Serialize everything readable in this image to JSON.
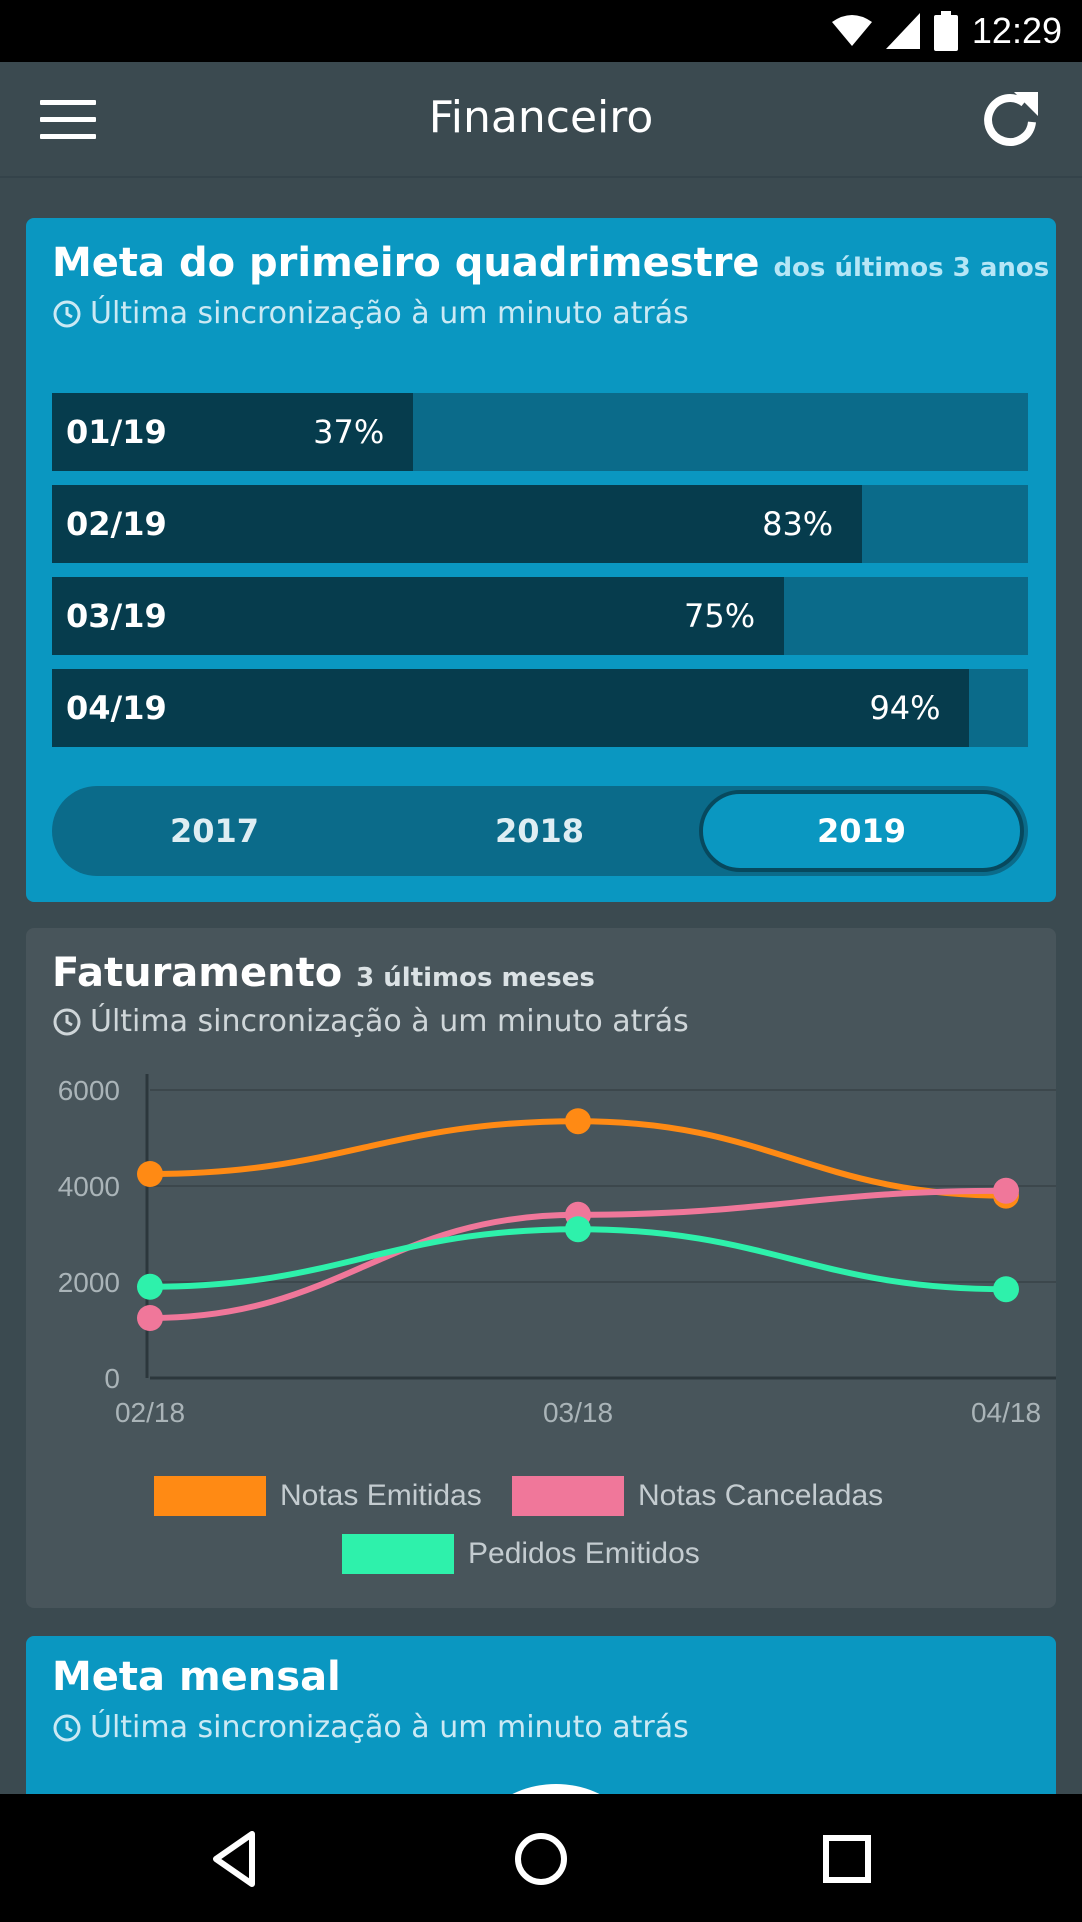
{
  "status": {
    "time": "12:29"
  },
  "app": {
    "title": "Financeiro"
  },
  "goal_card": {
    "title": "Meta do primeiro quadrimestre",
    "title_sub": "dos últimos 3 anos",
    "sync": "Última sincronização à um minuto atrás",
    "rows": [
      {
        "label": "01/19",
        "pct_text": "37%",
        "fraction": 0.37
      },
      {
        "label": "02/19",
        "pct_text": "83%",
        "fraction": 0.83
      },
      {
        "label": "03/19",
        "pct_text": "75%",
        "fraction": 0.75
      },
      {
        "label": "04/19",
        "pct_text": "94%",
        "fraction": 0.94
      }
    ],
    "years": [
      "2017",
      "2018",
      "2019"
    ],
    "selected_year": "2019"
  },
  "revenue_card": {
    "title": "Faturamento",
    "title_sub": "3 últimos meses",
    "sync": "Última sincronização à um minuto atrás"
  },
  "chart_data": {
    "type": "line",
    "title": "Faturamento",
    "x": [
      "02/18",
      "03/18",
      "04/18"
    ],
    "y_ticks": [
      "0",
      "2000",
      "4000",
      "6000"
    ],
    "ylim": [
      0,
      6000
    ],
    "series": [
      {
        "name": "Notas Emitidas",
        "color": "#ff8a14",
        "values": [
          4250,
          5350,
          3800
        ]
      },
      {
        "name": "Notas Canceladas",
        "color": "#f0779a",
        "values": [
          1250,
          3400,
          3900
        ]
      },
      {
        "name": "Pedidos Emitidos",
        "color": "#2ef1ab",
        "values": [
          1900,
          3100,
          1850
        ]
      }
    ],
    "legend_position": "bottom"
  },
  "monthly_card": {
    "title": "Meta mensal",
    "sync": "Última sincronização à um minuto atrás"
  },
  "colors": {
    "accent": "#0a97c1",
    "dark_fill": "#063c4d",
    "background": "#3b4a50"
  }
}
